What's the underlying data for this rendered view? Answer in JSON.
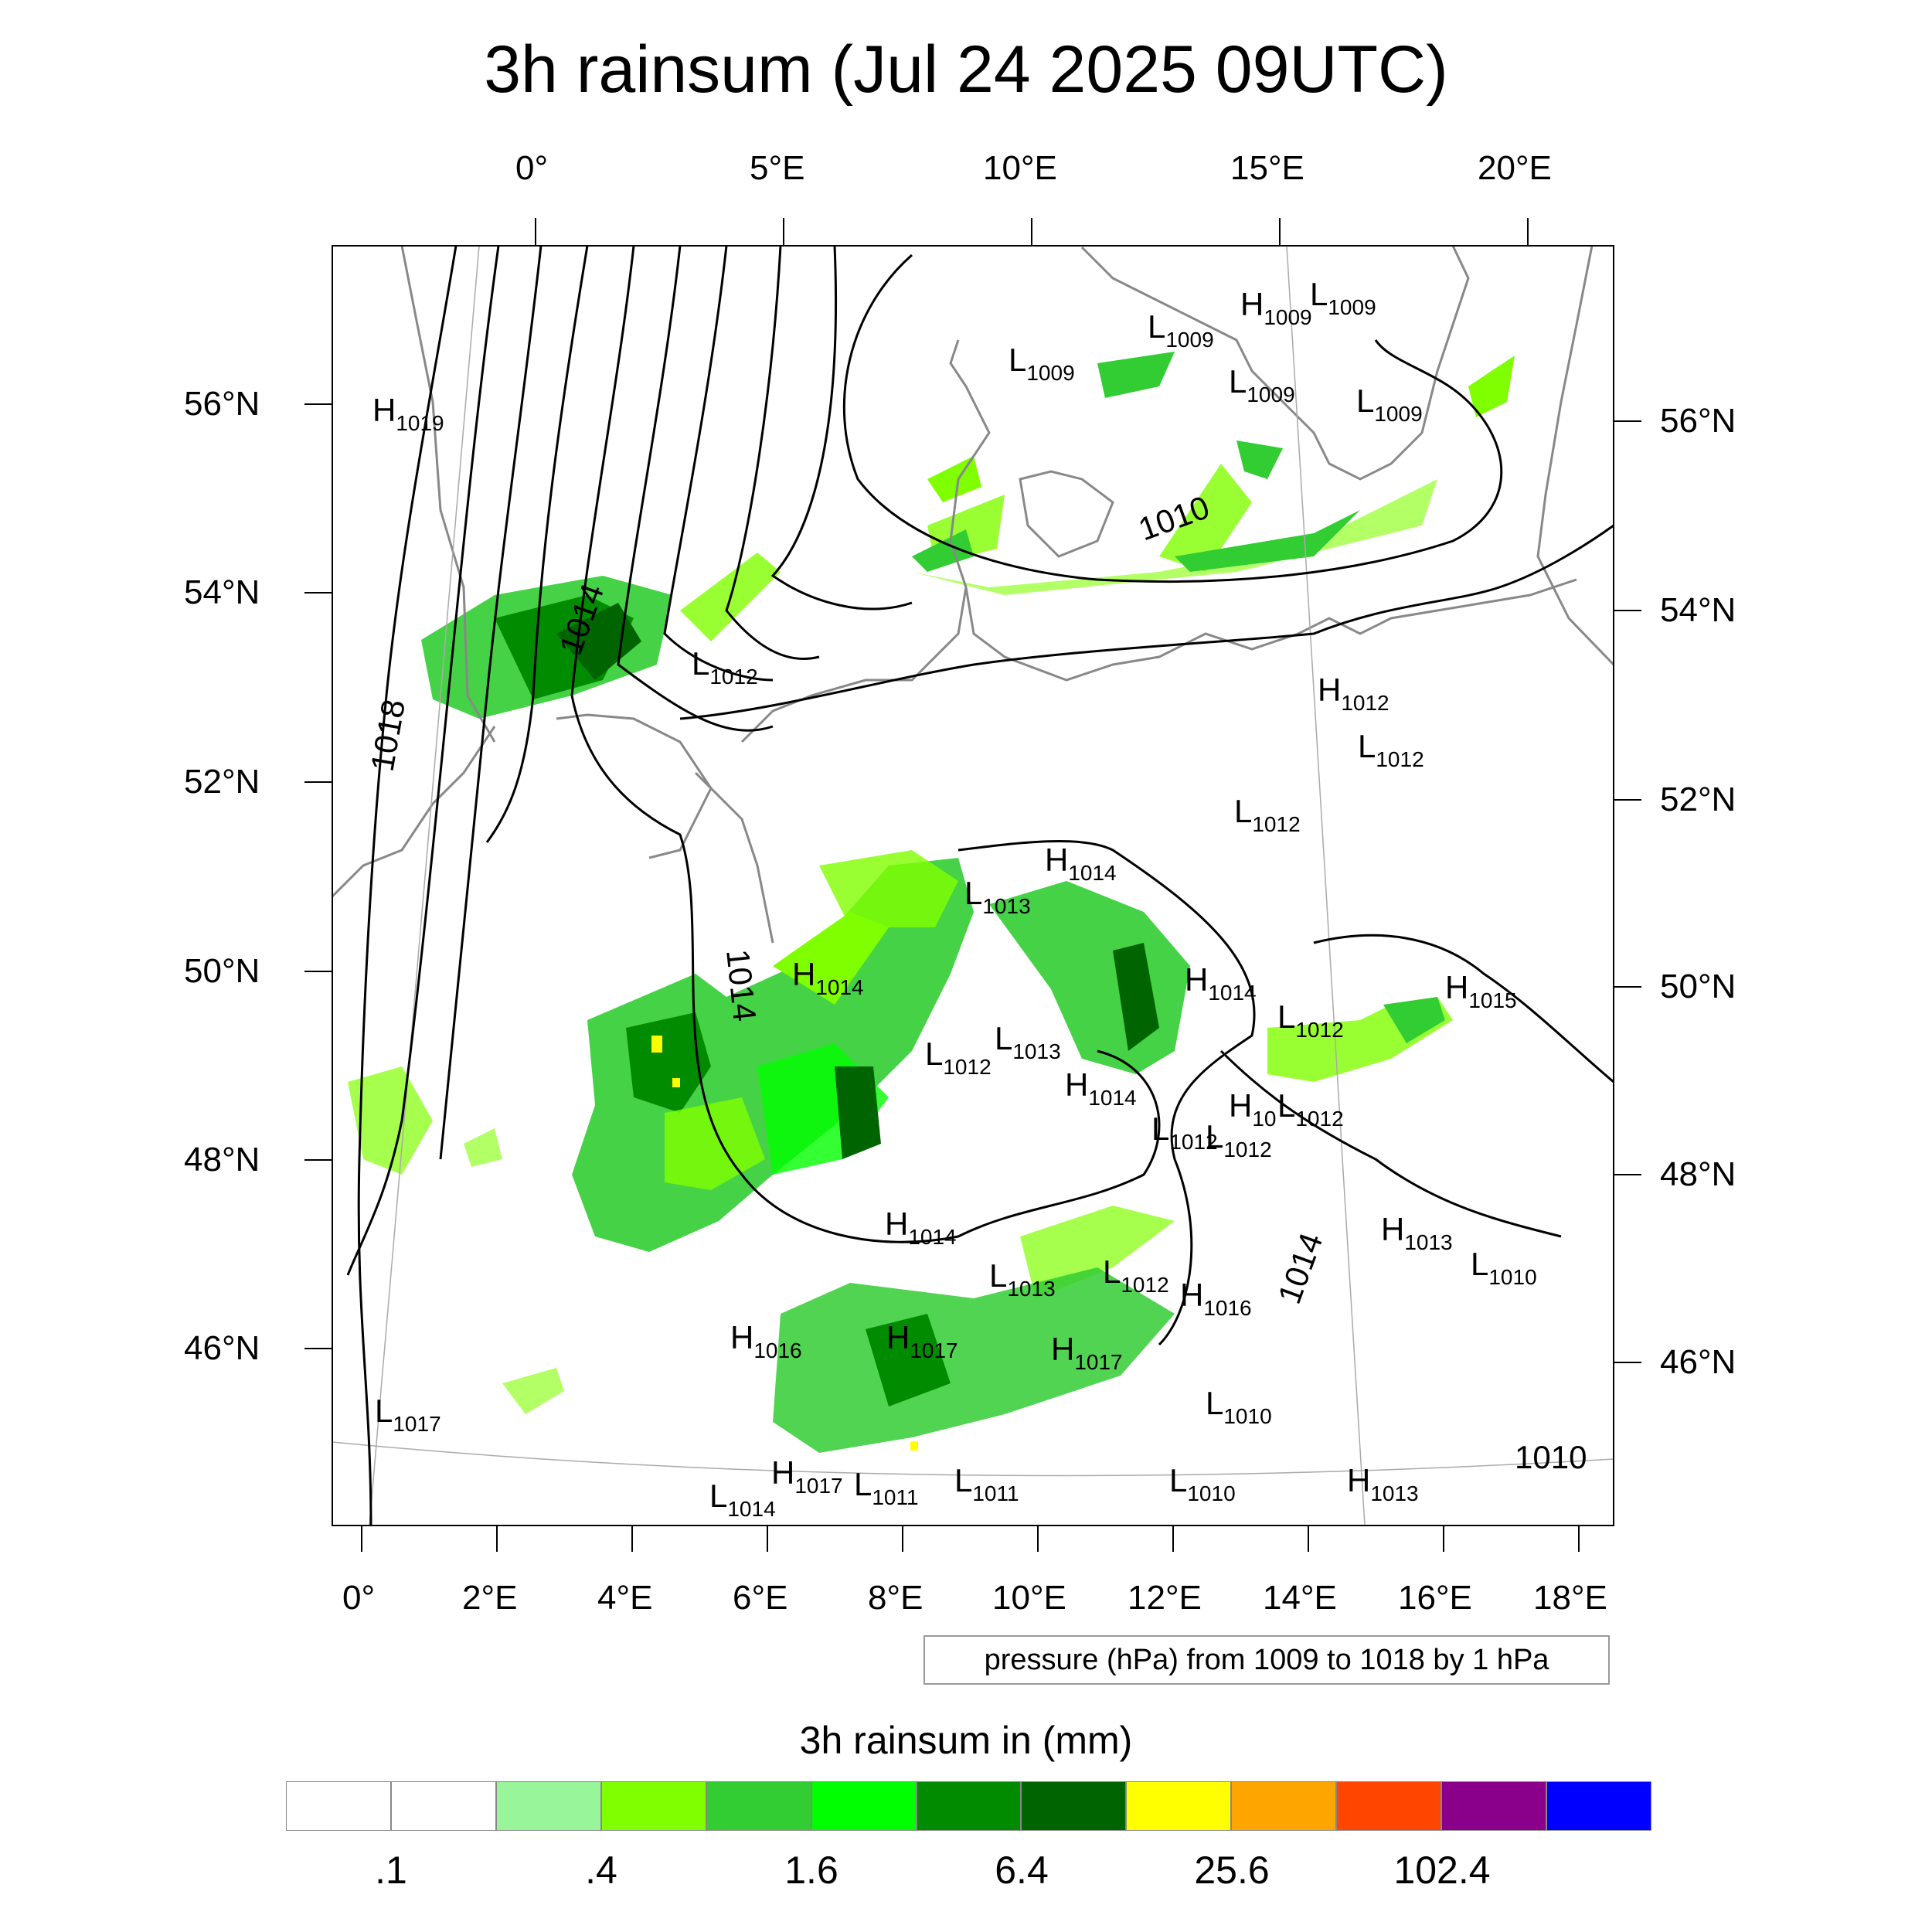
{
  "title": "3h rainsum (Jul 24 2025 09UTC)",
  "top_lon_labels": [
    "0°",
    "5°E",
    "10°E",
    "15°E",
    "20°E"
  ],
  "bottom_lon_labels": [
    "0°",
    "2°E",
    "4°E",
    "6°E",
    "8°E",
    "10°E",
    "12°E",
    "14°E",
    "16°E",
    "18°E"
  ],
  "left_lat_labels": [
    "56°N",
    "54°N",
    "52°N",
    "50°N",
    "48°N",
    "46°N"
  ],
  "right_lat_labels": [
    "56°N",
    "54°N",
    "52°N",
    "50°N",
    "48°N",
    "46°N"
  ],
  "isobar_caption": "pressure (hPa) from 1009 to 1018 by 1 hPa",
  "colorbar": {
    "title": "3h rainsum in (mm)",
    "colors": [
      "#ffffff",
      "#ffffff",
      "#99f599",
      "#80ff00",
      "#32cd32",
      "#00ff00",
      "#008b00",
      "#006400",
      "#ffff00",
      "#ffa500",
      "#ff4500",
      "#8b008b",
      "#0000ff"
    ],
    "labels": [
      ".1",
      ".4",
      "1.6",
      "6.4",
      "25.6",
      "102.4"
    ]
  },
  "pressure_centers": [
    {
      "t": "H",
      "v": "1019"
    },
    {
      "t": "L",
      "v": "1009"
    },
    {
      "t": "L",
      "v": "1009"
    },
    {
      "t": "H",
      "v": "1009"
    },
    {
      "t": "L",
      "v": "1009"
    },
    {
      "t": "L",
      "v": "1009"
    },
    {
      "t": "L",
      "v": "1009"
    },
    {
      "t": "L",
      "v": "1012"
    },
    {
      "t": "H",
      "v": "1012"
    },
    {
      "t": "L",
      "v": "1012"
    },
    {
      "t": "L",
      "v": "1012"
    },
    {
      "t": "H",
      "v": "1014"
    },
    {
      "t": "L",
      "v": "1013"
    },
    {
      "t": "H",
      "v": "1014"
    },
    {
      "t": "L",
      "v": "1012"
    },
    {
      "t": "L",
      "v": "1013"
    },
    {
      "t": "H",
      "v": "1014"
    },
    {
      "t": "H",
      "v": "1014"
    },
    {
      "t": "L",
      "v": "1012"
    },
    {
      "t": "L",
      "v": "1012"
    },
    {
      "t": "H",
      "v": "1015"
    },
    {
      "t": "H",
      "v": "10"
    },
    {
      "t": "L",
      "v": "1012"
    },
    {
      "t": "L",
      "v": "1012"
    },
    {
      "t": "H",
      "v": "1014"
    },
    {
      "t": "L",
      "v": "1013"
    },
    {
      "t": "L",
      "v": "1012"
    },
    {
      "t": "H",
      "v": "1016"
    },
    {
      "t": "H",
      "v": "1013"
    },
    {
      "t": "L",
      "v": "1010"
    },
    {
      "t": "H",
      "v": "1016"
    },
    {
      "t": "H",
      "v": "1017"
    },
    {
      "t": "H",
      "v": "1017"
    },
    {
      "t": "L",
      "v": "1017"
    },
    {
      "t": "L",
      "v": "1010"
    },
    {
      "t": "H",
      "v": "1017"
    },
    {
      "t": "L",
      "v": "1011"
    },
    {
      "t": "L",
      "v": "1011"
    },
    {
      "t": "L",
      "v": "1014"
    },
    {
      "t": "L",
      "v": "1010"
    },
    {
      "t": "H",
      "v": "1013"
    }
  ],
  "isobar_labels": [
    "1018",
    "1014",
    "1014",
    "1010",
    "1014",
    "1010"
  ]
}
